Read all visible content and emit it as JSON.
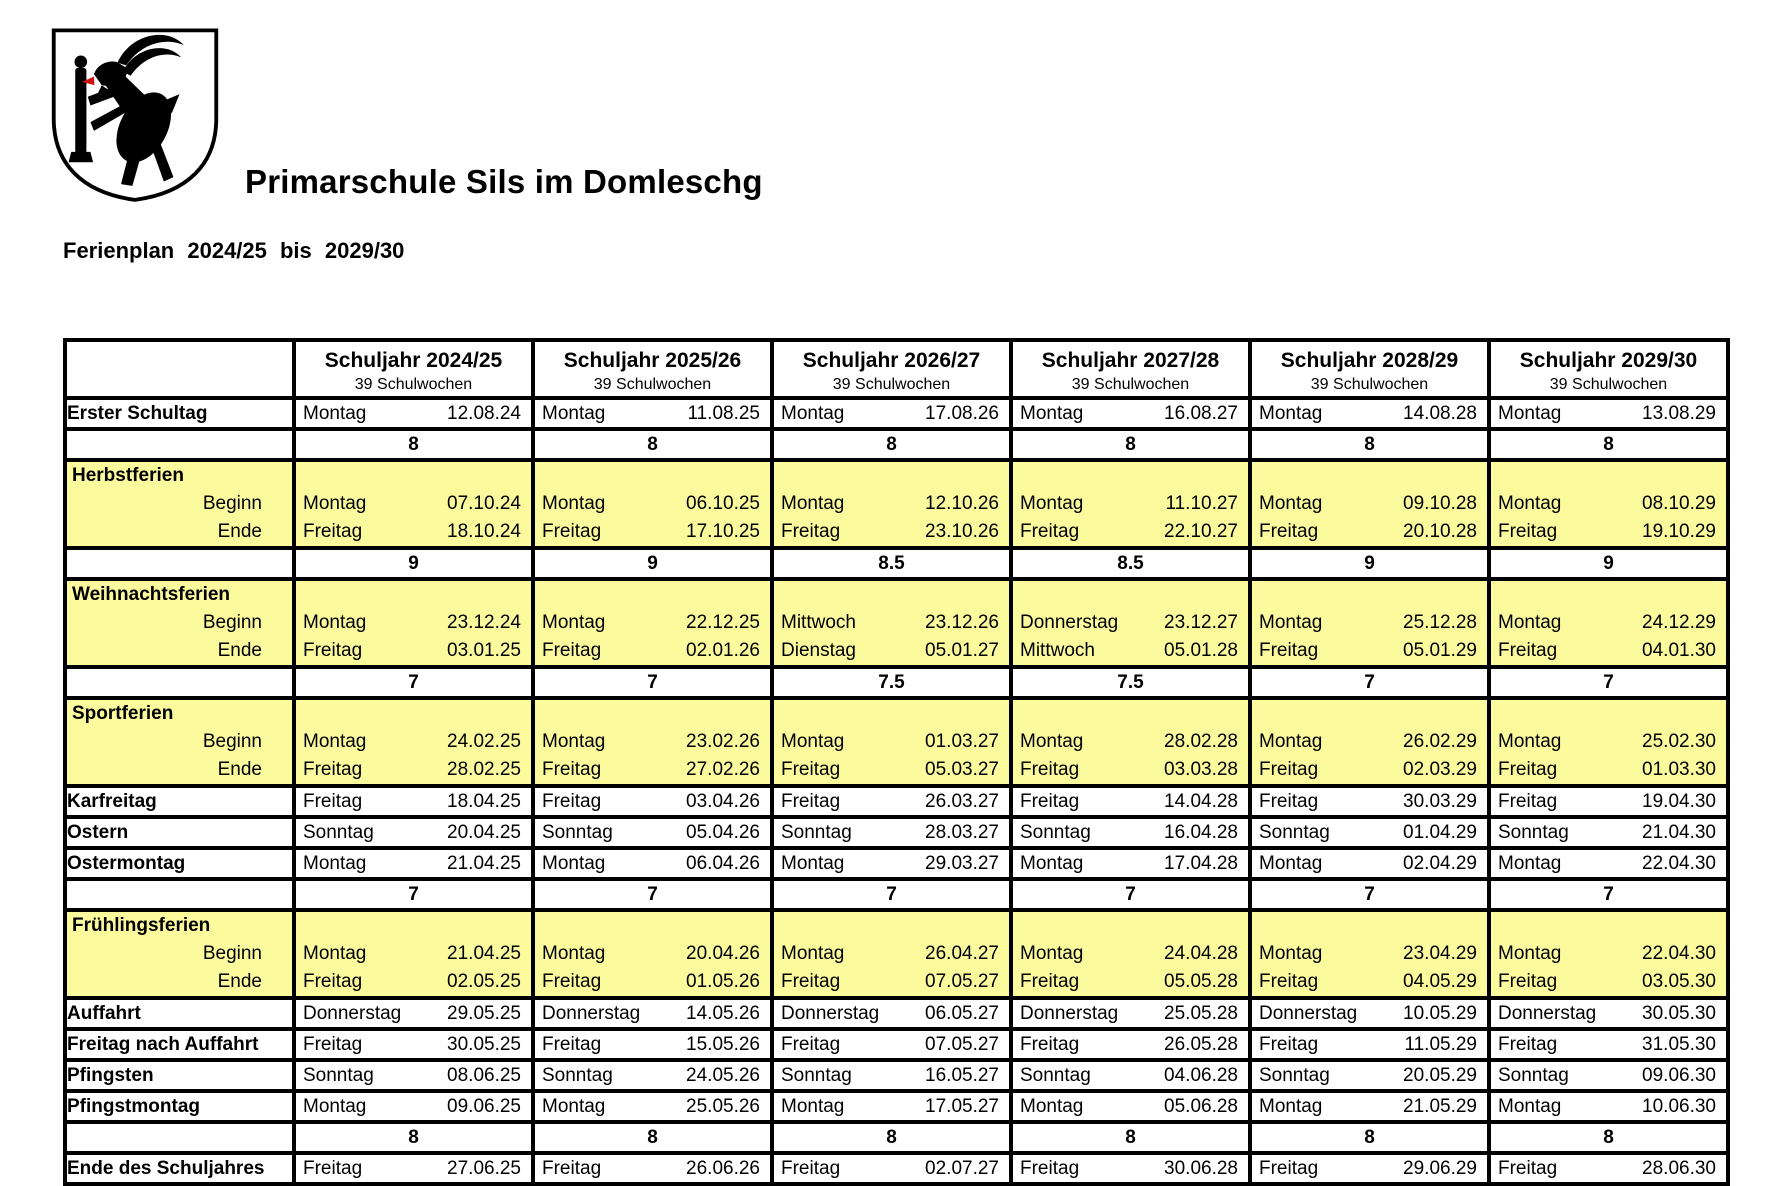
{
  "header": {
    "title": "Primarschule Sils im Domleschg",
    "subtitle": "Ferienplan 2024/25 bis 2029/30",
    "logo": "sils-im-domleschg-coat-of-arms-black-ibex"
  },
  "colors": {
    "section_yellow": "#FBFA9D",
    "border_black": "#000000",
    "tongue_red": "#CC1111"
  },
  "table": {
    "year_headers": [
      {
        "title": "Schuljahr 2024/25",
        "subtitle": "39 Schulwochen"
      },
      {
        "title": "Schuljahr 2025/26",
        "subtitle": "39 Schulwochen"
      },
      {
        "title": "Schuljahr 2026/27",
        "subtitle": "39 Schulwochen"
      },
      {
        "title": "Schuljahr 2027/28",
        "subtitle": "39 Schulwochen"
      },
      {
        "title": "Schuljahr 2028/29",
        "subtitle": "39 Schulwochen"
      },
      {
        "title": "Schuljahr 2029/30",
        "subtitle": "39 Schulwochen"
      }
    ],
    "rows": [
      {
        "type": "date",
        "label": "Erster Schultag",
        "cells": [
          [
            "Montag",
            "12.08.24"
          ],
          [
            "Montag",
            "11.08.25"
          ],
          [
            "Montag",
            "17.08.26"
          ],
          [
            "Montag",
            "16.08.27"
          ],
          [
            "Montag",
            "14.08.28"
          ],
          [
            "Montag",
            "13.08.29"
          ]
        ]
      },
      {
        "type": "weeks",
        "label": "",
        "values": [
          "8",
          "8",
          "8",
          "8",
          "8",
          "8"
        ]
      },
      {
        "type": "section",
        "label": "Herbstferien",
        "row_labels": [
          "Beginn",
          "Ende"
        ],
        "beginn": [
          [
            "Montag",
            "07.10.24"
          ],
          [
            "Montag",
            "06.10.25"
          ],
          [
            "Montag",
            "12.10.26"
          ],
          [
            "Montag",
            "11.10.27"
          ],
          [
            "Montag",
            "09.10.28"
          ],
          [
            "Montag",
            "08.10.29"
          ]
        ],
        "ende": [
          [
            "Freitag",
            "18.10.24"
          ],
          [
            "Freitag",
            "17.10.25"
          ],
          [
            "Freitag",
            "23.10.26"
          ],
          [
            "Freitag",
            "22.10.27"
          ],
          [
            "Freitag",
            "20.10.28"
          ],
          [
            "Freitag",
            "19.10.29"
          ]
        ]
      },
      {
        "type": "weeks",
        "label": "",
        "values": [
          "9",
          "9",
          "8.5",
          "8.5",
          "9",
          "9"
        ]
      },
      {
        "type": "section",
        "label": "Weihnachtsferien",
        "row_labels": [
          "Beginn",
          "Ende"
        ],
        "beginn": [
          [
            "Montag",
            "23.12.24"
          ],
          [
            "Montag",
            "22.12.25"
          ],
          [
            "Mittwoch",
            "23.12.26"
          ],
          [
            "Donnerstag",
            "23.12.27"
          ],
          [
            "Montag",
            "25.12.28"
          ],
          [
            "Montag",
            "24.12.29"
          ]
        ],
        "ende": [
          [
            "Freitag",
            "03.01.25"
          ],
          [
            "Freitag",
            "02.01.26"
          ],
          [
            "Dienstag",
            "05.01.27"
          ],
          [
            "Mittwoch",
            "05.01.28"
          ],
          [
            "Freitag",
            "05.01.29"
          ],
          [
            "Freitag",
            "04.01.30"
          ]
        ]
      },
      {
        "type": "weeks",
        "label": "",
        "values": [
          "7",
          "7",
          "7.5",
          "7.5",
          "7",
          "7"
        ]
      },
      {
        "type": "section",
        "label": "Sportferien",
        "row_labels": [
          "Beginn",
          "Ende"
        ],
        "beginn": [
          [
            "Montag",
            "24.02.25"
          ],
          [
            "Montag",
            "23.02.26"
          ],
          [
            "Montag",
            "01.03.27"
          ],
          [
            "Montag",
            "28.02.28"
          ],
          [
            "Montag",
            "26.02.29"
          ],
          [
            "Montag",
            "25.02.30"
          ]
        ],
        "ende": [
          [
            "Freitag",
            "28.02.25"
          ],
          [
            "Freitag",
            "27.02.26"
          ],
          [
            "Freitag",
            "05.03.27"
          ],
          [
            "Freitag",
            "03.03.28"
          ],
          [
            "Freitag",
            "02.03.29"
          ],
          [
            "Freitag",
            "01.03.30"
          ]
        ]
      },
      {
        "type": "date",
        "label": "Karfreitag",
        "cells": [
          [
            "Freitag",
            "18.04.25"
          ],
          [
            "Freitag",
            "03.04.26"
          ],
          [
            "Freitag",
            "26.03.27"
          ],
          [
            "Freitag",
            "14.04.28"
          ],
          [
            "Freitag",
            "30.03.29"
          ],
          [
            "Freitag",
            "19.04.30"
          ]
        ]
      },
      {
        "type": "date",
        "label": "Ostern",
        "cells": [
          [
            "Sonntag",
            "20.04.25"
          ],
          [
            "Sonntag",
            "05.04.26"
          ],
          [
            "Sonntag",
            "28.03.27"
          ],
          [
            "Sonntag",
            "16.04.28"
          ],
          [
            "Sonntag",
            "01.04.29"
          ],
          [
            "Sonntag",
            "21.04.30"
          ]
        ]
      },
      {
        "type": "date",
        "label": "Ostermontag",
        "cells": [
          [
            "Montag",
            "21.04.25"
          ],
          [
            "Montag",
            "06.04.26"
          ],
          [
            "Montag",
            "29.03.27"
          ],
          [
            "Montag",
            "17.04.28"
          ],
          [
            "Montag",
            "02.04.29"
          ],
          [
            "Montag",
            "22.04.30"
          ]
        ]
      },
      {
        "type": "weeks",
        "label": "",
        "values": [
          "7",
          "7",
          "7",
          "7",
          "7",
          "7"
        ]
      },
      {
        "type": "section",
        "label": "Frühlingsferien",
        "row_labels": [
          "Beginn",
          "Ende"
        ],
        "beginn": [
          [
            "Montag",
            "21.04.25"
          ],
          [
            "Montag",
            "20.04.26"
          ],
          [
            "Montag",
            "26.04.27"
          ],
          [
            "Montag",
            "24.04.28"
          ],
          [
            "Montag",
            "23.04.29"
          ],
          [
            "Montag",
            "22.04.30"
          ]
        ],
        "ende": [
          [
            "Freitag",
            "02.05.25"
          ],
          [
            "Freitag",
            "01.05.26"
          ],
          [
            "Freitag",
            "07.05.27"
          ],
          [
            "Freitag",
            "05.05.28"
          ],
          [
            "Freitag",
            "04.05.29"
          ],
          [
            "Freitag",
            "03.05.30"
          ]
        ]
      },
      {
        "type": "date",
        "label": "Auffahrt",
        "cells": [
          [
            "Donnerstag",
            "29.05.25"
          ],
          [
            "Donnerstag",
            "14.05.26"
          ],
          [
            "Donnerstag",
            "06.05.27"
          ],
          [
            "Donnerstag",
            "25.05.28"
          ],
          [
            "Donnerstag",
            "10.05.29"
          ],
          [
            "Donnerstag",
            "30.05.30"
          ]
        ]
      },
      {
        "type": "date",
        "label": "Freitag nach Auffahrt",
        "cells": [
          [
            "Freitag",
            "30.05.25"
          ],
          [
            "Freitag",
            "15.05.26"
          ],
          [
            "Freitag",
            "07.05.27"
          ],
          [
            "Freitag",
            "26.05.28"
          ],
          [
            "Freitag",
            "11.05.29"
          ],
          [
            "Freitag",
            "31.05.30"
          ]
        ]
      },
      {
        "type": "date",
        "label": "Pfingsten",
        "cells": [
          [
            "Sonntag",
            "08.06.25"
          ],
          [
            "Sonntag",
            "24.05.26"
          ],
          [
            "Sonntag",
            "16.05.27"
          ],
          [
            "Sonntag",
            "04.06.28"
          ],
          [
            "Sonntag",
            "20.05.29"
          ],
          [
            "Sonntag",
            "09.06.30"
          ]
        ]
      },
      {
        "type": "date",
        "label": "Pfingstmontag",
        "cells": [
          [
            "Montag",
            "09.06.25"
          ],
          [
            "Montag",
            "25.05.26"
          ],
          [
            "Montag",
            "17.05.27"
          ],
          [
            "Montag",
            "05.06.28"
          ],
          [
            "Montag",
            "21.05.29"
          ],
          [
            "Montag",
            "10.06.30"
          ]
        ]
      },
      {
        "type": "weeks",
        "label": "",
        "values": [
          "8",
          "8",
          "8",
          "8",
          "8",
          "8"
        ]
      },
      {
        "type": "date",
        "label": "Ende des Schuljahres",
        "cells": [
          [
            "Freitag",
            "27.06.25"
          ],
          [
            "Freitag",
            "26.06.26"
          ],
          [
            "Freitag",
            "02.07.27"
          ],
          [
            "Freitag",
            "30.06.28"
          ],
          [
            "Freitag",
            "29.06.29"
          ],
          [
            "Freitag",
            "28.06.30"
          ]
        ]
      }
    ]
  }
}
